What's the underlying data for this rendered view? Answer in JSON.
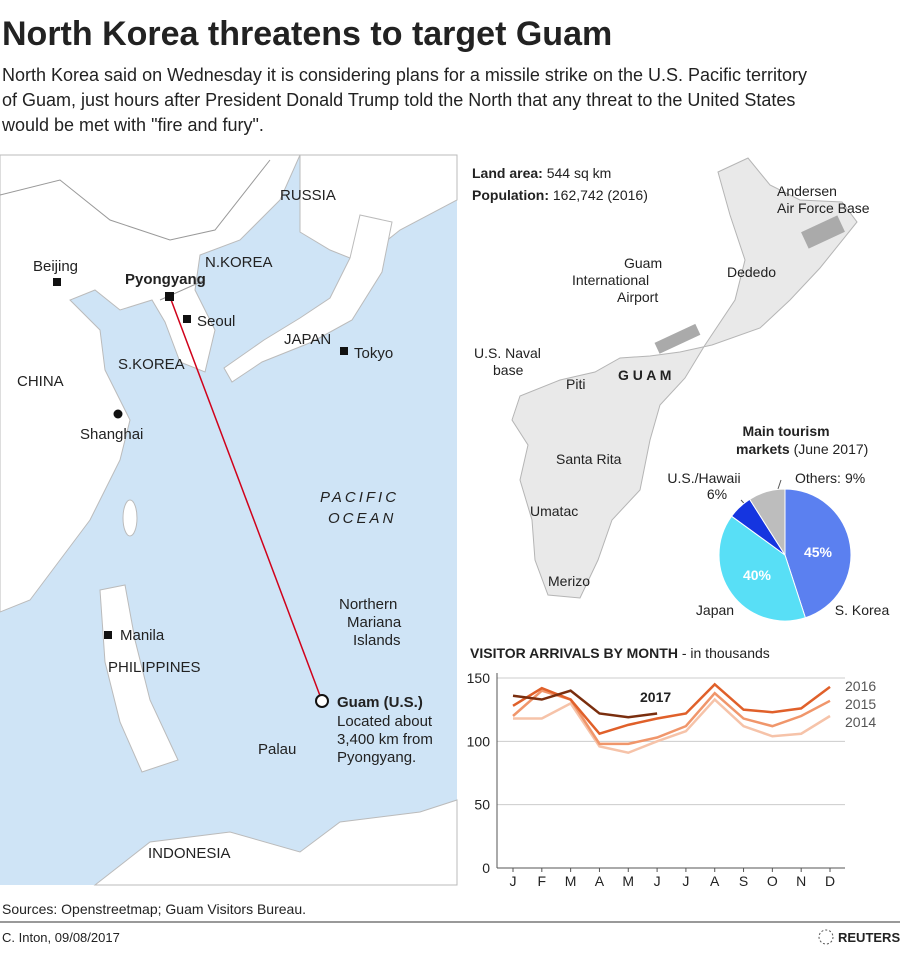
{
  "header": {
    "title": "North Korea threatens to target Guam",
    "subtitle": [
      "North Korea said on Wednesday it is considering plans for a missile strike on the U.S. Pacific territory",
      "of Guam, just hours after President Donald Trump told the North that any threat to the United States",
      "would be met with \"fire and fury\"."
    ]
  },
  "map": {
    "russia": "RUSSIA",
    "nkorea": "N.KOREA",
    "beijing": "Beijing",
    "pyongyang": "Pyongyang",
    "seoul": "Seoul",
    "japan": "JAPAN",
    "tokyo": "Tokyo",
    "china": "CHINA",
    "skorea": "S.KOREA",
    "shanghai": "Shanghai",
    "pacific": [
      "PACIFIC",
      "OCEAN"
    ],
    "marianas": [
      "Northern",
      "Mariana",
      "Islands"
    ],
    "manila": "Manila",
    "philippines": "PHILIPPINES",
    "guam": "Guam (U.S.)",
    "guam_note": [
      "Located about",
      "3,400 km from",
      "Pyongyang."
    ],
    "palau": "Palau",
    "indonesia": "INDONESIA"
  },
  "guam_map": {
    "land_area_label": "Land area:",
    "land_area": "544 sq km",
    "population_label": "Population:",
    "population": "162,742 (2016)",
    "andersen": [
      "Andersen",
      "Air Force Base"
    ],
    "airport": [
      "Guam",
      "International",
      "Airport"
    ],
    "dededo": "Dededo",
    "naval": [
      "U.S. Naval",
      "base"
    ],
    "piti": "Piti",
    "guam": "G U A M",
    "santa_rita": "Santa Rita",
    "umatac": "Umatac",
    "merizo": "Merizo"
  },
  "chart_data": [
    {
      "type": "pie",
      "title": [
        "Main tourism",
        "markets"
      ],
      "subtitle": "(June 2017)",
      "categories": [
        "S. Korea",
        "Japan",
        "U.S./Hawaii",
        "Others:"
      ],
      "values": [
        45,
        40,
        6,
        9
      ],
      "value_labels": [
        "45%",
        "40%",
        "6%",
        "9%"
      ],
      "colors": [
        "#5b80f0",
        "#58dff6",
        "#1535e0",
        "#bdbdbd"
      ]
    },
    {
      "type": "line",
      "title": "VISITOR ARRIVALS BY MONTH",
      "subtitle": "- in thousands",
      "categories": [
        "J",
        "F",
        "M",
        "A",
        "M",
        "J",
        "J",
        "A",
        "S",
        "O",
        "N",
        "D"
      ],
      "ylim": [
        0,
        150
      ],
      "yticks": [
        0,
        50,
        100,
        150
      ],
      "grid": true,
      "series": [
        {
          "name": "2014",
          "color": "#f6c3a9",
          "values": [
            118,
            118,
            130,
            96,
            91,
            100,
            108,
            133,
            112,
            104,
            106,
            120
          ]
        },
        {
          "name": "2015",
          "color": "#f0966b",
          "values": [
            120,
            140,
            133,
            98,
            98,
            103,
            112,
            138,
            118,
            112,
            120,
            132
          ]
        },
        {
          "name": "2016",
          "color": "#e0602a",
          "values": [
            128,
            142,
            133,
            106,
            113,
            118,
            122,
            145,
            125,
            123,
            126,
            143
          ]
        },
        {
          "name": "2017",
          "color": "#7a2e0e",
          "values": [
            136,
            133,
            140,
            122,
            119,
            122,
            null,
            null,
            null,
            null,
            null,
            null
          ]
        }
      ]
    }
  ],
  "footer": {
    "sources": "Sources: Openstreetmap; Guam Visitors Bureau.",
    "credit": "C. Inton,  09/08/2017",
    "brand": "REUTERS"
  }
}
